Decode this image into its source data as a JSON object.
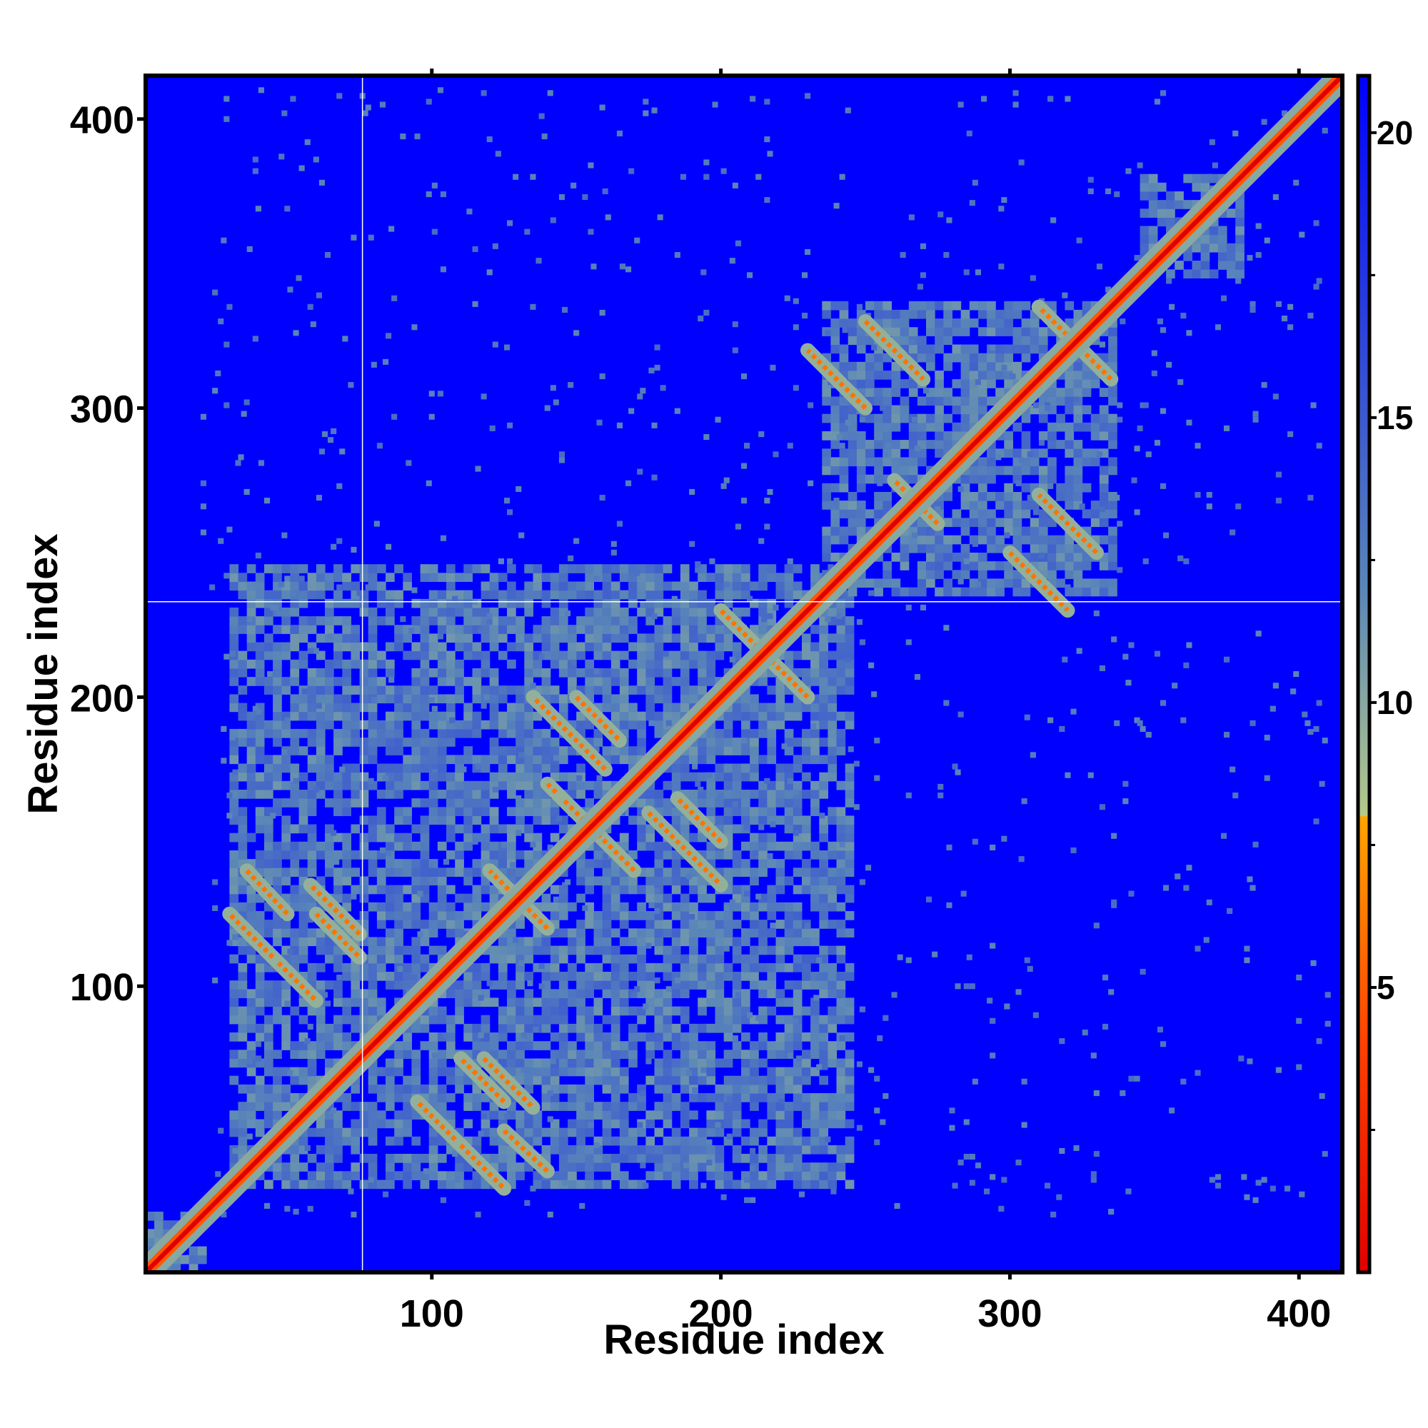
{
  "chart_data": {
    "type": "heatmap",
    "title": "",
    "xlabel": "Residue index",
    "ylabel": "Residue index",
    "xlim": [
      1,
      415
    ],
    "ylim": [
      1,
      415
    ],
    "x_ticks": [
      100,
      200,
      300,
      400
    ],
    "y_ticks": [
      100,
      200,
      300,
      400
    ],
    "n_residues": 415,
    "gap_lines": {
      "x": 76,
      "y": 233
    },
    "colorbar": {
      "min": 0,
      "max": 21,
      "ticks": [
        5,
        10,
        15,
        20
      ],
      "stops": [
        {
          "value": 0,
          "color": "#e00000"
        },
        {
          "value": 4,
          "color": "#ff4000"
        },
        {
          "value": 8,
          "color": "#ffa500"
        },
        {
          "value": 8.01,
          "color": "#b5c98a"
        },
        {
          "value": 12,
          "color": "#5a86b8"
        },
        {
          "value": 21,
          "color": "#0000ff"
        }
      ]
    },
    "background_color": "#0000ff",
    "contact_blocks": [
      {
        "x": [
          30,
          245
        ],
        "y": [
          30,
          245
        ],
        "level": "medium"
      },
      {
        "x": [
          235,
          335
        ],
        "y": [
          235,
          335
        ],
        "level": "medium"
      },
      {
        "x": [
          345,
          380
        ],
        "y": [
          345,
          380
        ],
        "level": "medium"
      },
      {
        "x": [
          1,
          20
        ],
        "y": [
          1,
          20
        ],
        "level": "medium"
      }
    ],
    "off_diagonal_bands": [
      {
        "from": [
          36,
          140
        ],
        "to": [
          50,
          125
        ]
      },
      {
        "from": [
          45,
          110
        ],
        "to": [
          60,
          95
        ]
      },
      {
        "from": [
          60,
          125
        ],
        "to": [
          75,
          110
        ]
      },
      {
        "from": [
          110,
          45
        ],
        "to": [
          125,
          30
        ]
      },
      {
        "from": [
          118,
          75
        ],
        "to": [
          135,
          58
        ]
      },
      {
        "from": [
          120,
          140
        ],
        "to": [
          140,
          120
        ]
      },
      {
        "from": [
          140,
          170
        ],
        "to": [
          165,
          145
        ]
      },
      {
        "from": [
          150,
          200
        ],
        "to": [
          165,
          185
        ]
      },
      {
        "from": [
          175,
          160
        ],
        "to": [
          200,
          135
        ]
      },
      {
        "from": [
          200,
          230
        ],
        "to": [
          230,
          200
        ]
      },
      {
        "from": [
          250,
          330
        ],
        "to": [
          270,
          310
        ]
      },
      {
        "from": [
          260,
          275
        ],
        "to": [
          275,
          260
        ]
      },
      {
        "from": [
          300,
          250
        ],
        "to": [
          320,
          230
        ]
      },
      {
        "from": [
          310,
          335
        ],
        "to": [
          335,
          310
        ]
      }
    ]
  }
}
